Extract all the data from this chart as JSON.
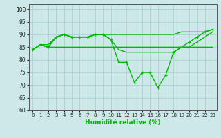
{
  "background_color": "#cce8e8",
  "grid_color": "#aacccc",
  "line_color": "#00bb00",
  "xlabel": "Humidité relative (%)",
  "ylim": [
    60,
    102
  ],
  "xlim": [
    -0.5,
    23.5
  ],
  "yticks": [
    60,
    65,
    70,
    75,
    80,
    85,
    90,
    95,
    100
  ],
  "xticks": [
    0,
    1,
    2,
    3,
    4,
    5,
    6,
    7,
    8,
    9,
    10,
    11,
    12,
    13,
    14,
    15,
    16,
    17,
    18,
    19,
    20,
    21,
    22,
    23
  ],
  "series": [
    {
      "y": [
        84,
        86,
        86,
        89,
        90,
        89,
        89,
        89,
        90,
        90,
        90,
        90,
        90,
        90,
        90,
        90,
        90,
        90,
        90,
        91,
        91,
        91,
        91,
        92
      ],
      "marker": false,
      "linewidth": 1.0
    },
    {
      "y": [
        84,
        86,
        85,
        89,
        90,
        89,
        89,
        89,
        90,
        90,
        88,
        84,
        83,
        83,
        83,
        83,
        83,
        83,
        83,
        85,
        85,
        87,
        89,
        91
      ],
      "marker": false,
      "linewidth": 1.0
    },
    {
      "y": [
        84,
        86,
        85,
        85,
        85,
        85,
        85,
        85,
        85,
        85,
        85,
        85,
        85,
        85,
        85,
        85,
        85,
        85,
        85,
        85,
        85,
        85,
        85,
        85
      ],
      "marker": false,
      "linewidth": 1.0
    },
    {
      "y": [
        84,
        86,
        85,
        89,
        90,
        89,
        89,
        89,
        90,
        90,
        88,
        79,
        79,
        71,
        75,
        75,
        69,
        74,
        83,
        85,
        87,
        89,
        91,
        92
      ],
      "marker": true,
      "linewidth": 1.0
    }
  ]
}
